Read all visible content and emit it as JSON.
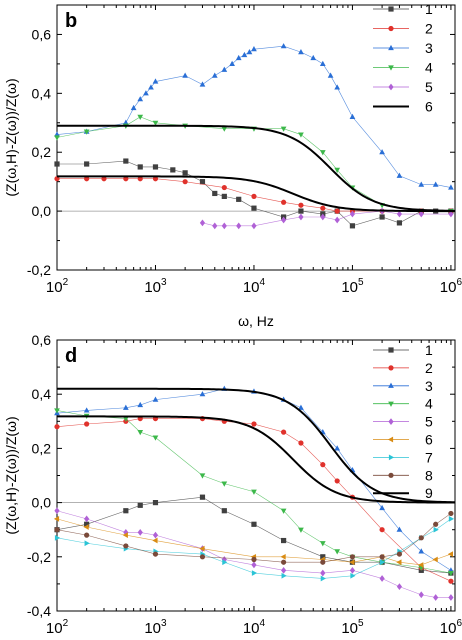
{
  "chart_data": [
    {
      "type": "scatter",
      "panel_label": "b",
      "xscale": "log",
      "xlim": [
        100,
        1100000
      ],
      "ylim": [
        -0.2,
        0.7
      ],
      "ylabel": "(Z(ω,H)-Z(ω))/Z(ω)",
      "xlabel": "ω, Hz",
      "x_ticks": [
        100,
        1000,
        10000,
        100000,
        1000000
      ],
      "x_tick_labels": [
        {
          "b": "10",
          "e": "2"
        },
        {
          "b": "10",
          "e": "3"
        },
        {
          "b": "10",
          "e": "4"
        },
        {
          "b": "10",
          "e": "5"
        },
        {
          "b": "10",
          "e": "6"
        }
      ],
      "y_ticks": [
        -0.2,
        0.0,
        0.2,
        0.4,
        0.6
      ],
      "y_tick_labels": [
        "-0,2",
        "0,0",
        "0,2",
        "0,4",
        "0,6"
      ],
      "legend_position": "top-right",
      "zero_line": true,
      "series": [
        {
          "name": "1",
          "marker": "square",
          "color": "#404040",
          "x": [
            100,
            200,
            500,
            700,
            1000,
            1500,
            2000,
            3000,
            4000,
            5000,
            7000,
            10000,
            20000,
            30000,
            50000,
            70000,
            100000,
            200000,
            300000,
            500000,
            700000,
            1000000
          ],
          "y": [
            0.16,
            0.16,
            0.17,
            0.15,
            0.15,
            0.14,
            0.13,
            0.1,
            0.06,
            0.05,
            0.04,
            0.01,
            -0.02,
            0.0,
            -0.01,
            0.0,
            -0.05,
            -0.02,
            -0.04,
            0.0,
            0.0,
            0.0
          ]
        },
        {
          "name": "2",
          "marker": "circle",
          "color": "#e0322c",
          "x": [
            100,
            200,
            300,
            500,
            700,
            1000,
            2000,
            5000,
            10000,
            20000,
            30000,
            50000,
            70000,
            100000,
            200000,
            500000,
            1000000
          ],
          "y": [
            0.11,
            0.11,
            0.11,
            0.11,
            0.11,
            0.11,
            0.1,
            0.08,
            0.05,
            0.03,
            0.02,
            0.01,
            0.0,
            0.0,
            0.0,
            0.0,
            0.0
          ]
        },
        {
          "name": "3",
          "marker": "triangle-up",
          "color": "#2a6fd6",
          "x": [
            100,
            200,
            500,
            600,
            700,
            800,
            900,
            1000,
            2000,
            3000,
            4000,
            5000,
            6000,
            7000,
            8000,
            9000,
            10000,
            20000,
            30000,
            40000,
            50000,
            60000,
            70000,
            100000,
            200000,
            300000,
            500000,
            700000,
            1000000
          ],
          "y": [
            0.26,
            0.27,
            0.3,
            0.35,
            0.38,
            0.4,
            0.42,
            0.44,
            0.46,
            0.43,
            0.46,
            0.48,
            0.5,
            0.52,
            0.53,
            0.54,
            0.55,
            0.56,
            0.54,
            0.52,
            0.5,
            0.46,
            0.42,
            0.32,
            0.2,
            0.12,
            0.09,
            0.09,
            0.08
          ]
        },
        {
          "name": "4",
          "marker": "triangle-down",
          "color": "#3cb84a",
          "x": [
            100,
            200,
            500,
            700,
            1000,
            2000,
            5000,
            10000,
            20000,
            30000,
            50000,
            70000,
            100000,
            200000,
            500000,
            1000000
          ],
          "y": [
            0.25,
            0.27,
            0.29,
            0.32,
            0.3,
            0.29,
            0.28,
            0.28,
            0.28,
            0.26,
            0.2,
            0.14,
            0.08,
            0.02,
            0.0,
            0.0
          ]
        },
        {
          "name": "5",
          "marker": "diamond",
          "color": "#b061d6",
          "x": [
            3000,
            4000,
            5000,
            7000,
            10000,
            20000,
            30000,
            50000,
            70000,
            100000,
            200000,
            300000,
            500000,
            1000000
          ],
          "y": [
            -0.04,
            -0.05,
            -0.05,
            -0.05,
            -0.05,
            -0.03,
            -0.02,
            -0.02,
            -0.03,
            -0.01,
            0.0,
            -0.01,
            -0.01,
            -0.01
          ]
        }
      ],
      "fits": [
        {
          "name": "6",
          "plateau": 0.29,
          "f0": 60000
        },
        {
          "plateau": 0.118,
          "f0": 25000
        }
      ]
    },
    {
      "type": "scatter",
      "panel_label": "d",
      "xscale": "log",
      "xlim": [
        100,
        1100000
      ],
      "ylim": [
        -0.4,
        0.6
      ],
      "ylabel": "(Z(ω,H)-Z(ω))/Z(ω)",
      "xlabel": "",
      "x_ticks": [
        100,
        1000,
        10000,
        100000,
        1000000
      ],
      "x_tick_labels": [
        {
          "b": "10",
          "e": "2"
        },
        {
          "b": "10",
          "e": "3"
        },
        {
          "b": "10",
          "e": "4"
        },
        {
          "b": "10",
          "e": "5"
        },
        {
          "b": "10",
          "e": "6"
        }
      ],
      "y_ticks": [
        -0.4,
        -0.2,
        0.0,
        0.2,
        0.4,
        0.6
      ],
      "y_tick_labels": [
        "-0,4",
        "-0,2",
        "0,0",
        "0,2",
        "0,4",
        "0,6"
      ],
      "legend_position": "top-right",
      "zero_line": true,
      "series": [
        {
          "name": "1",
          "marker": "square",
          "color": "#404040",
          "x": [
            100,
            200,
            500,
            700,
            1000,
            3000,
            5000,
            10000,
            20000,
            50000,
            100000,
            200000,
            500000,
            1000000
          ],
          "y": [
            -0.1,
            -0.08,
            -0.03,
            -0.01,
            0.0,
            0.02,
            -0.03,
            -0.08,
            -0.14,
            -0.2,
            -0.22,
            -0.22,
            -0.25,
            -0.26
          ]
        },
        {
          "name": "2",
          "marker": "circle",
          "color": "#e0322c",
          "x": [
            100,
            200,
            500,
            700,
            1000,
            3000,
            5000,
            10000,
            20000,
            30000,
            50000,
            70000,
            100000,
            200000,
            500000,
            1000000
          ],
          "y": [
            0.28,
            0.29,
            0.3,
            0.31,
            0.31,
            0.31,
            0.3,
            0.29,
            0.26,
            0.22,
            0.14,
            0.08,
            0.02,
            -0.1,
            -0.24,
            -0.29
          ]
        },
        {
          "name": "3",
          "marker": "triangle-up",
          "color": "#2a6fd6",
          "x": [
            100,
            200,
            500,
            700,
            1000,
            3000,
            5000,
            10000,
            20000,
            30000,
            50000,
            70000,
            100000,
            200000,
            300000,
            500000,
            1000000
          ],
          "y": [
            0.33,
            0.34,
            0.35,
            0.36,
            0.38,
            0.4,
            0.42,
            0.41,
            0.38,
            0.35,
            0.26,
            0.2,
            0.12,
            -0.02,
            -0.1,
            -0.18,
            -0.25
          ]
        },
        {
          "name": "4",
          "marker": "triangle-down",
          "color": "#3cb84a",
          "x": [
            100,
            200,
            500,
            700,
            1000,
            3000,
            5000,
            10000,
            20000,
            30000,
            50000,
            70000,
            100000,
            200000,
            500000,
            1000000
          ],
          "y": [
            0.34,
            0.32,
            0.31,
            0.26,
            0.24,
            0.1,
            0.07,
            0.04,
            -0.03,
            -0.1,
            -0.15,
            -0.18,
            -0.2,
            -0.22,
            -0.24,
            -0.26
          ]
        },
        {
          "name": "5",
          "marker": "diamond",
          "color": "#b061d6",
          "x": [
            100,
            200,
            500,
            700,
            1000,
            3000,
            5000,
            10000,
            20000,
            50000,
            100000,
            200000,
            300000,
            500000,
            700000,
            1000000
          ],
          "y": [
            -0.03,
            -0.06,
            -0.11,
            -0.11,
            -0.12,
            -0.17,
            -0.21,
            -0.23,
            -0.25,
            -0.26,
            -0.25,
            -0.28,
            -0.31,
            -0.34,
            -0.35,
            -0.35
          ]
        },
        {
          "name": "6",
          "marker": "triangle-left",
          "color": "#d98c14",
          "x": [
            100,
            200,
            500,
            1000,
            3000,
            10000,
            20000,
            50000,
            100000,
            200000,
            300000,
            500000,
            700000,
            1000000
          ],
          "y": [
            -0.06,
            -0.09,
            -0.12,
            -0.14,
            -0.17,
            -0.2,
            -0.2,
            -0.21,
            -0.22,
            -0.2,
            -0.22,
            -0.23,
            -0.21,
            -0.19
          ]
        },
        {
          "name": "7",
          "marker": "triangle-right",
          "color": "#2bc4d6",
          "x": [
            100,
            200,
            500,
            1000,
            3000,
            5000,
            10000,
            20000,
            50000,
            100000,
            200000,
            300000,
            500000,
            700000,
            1000000
          ],
          "y": [
            -0.13,
            -0.15,
            -0.17,
            -0.18,
            -0.19,
            -0.22,
            -0.26,
            -0.27,
            -0.28,
            -0.27,
            -0.22,
            -0.18,
            -0.13,
            -0.1,
            -0.06
          ]
        },
        {
          "name": "8",
          "marker": "circle",
          "color": "#7a4a3a",
          "x": [
            100,
            200,
            500,
            1000,
            3000,
            10000,
            20000,
            50000,
            100000,
            200000,
            300000,
            500000,
            700000,
            1000000
          ],
          "y": [
            -0.1,
            -0.12,
            -0.16,
            -0.19,
            -0.2,
            -0.21,
            -0.22,
            -0.22,
            -0.2,
            -0.2,
            -0.19,
            -0.13,
            -0.08,
            -0.04
          ]
        }
      ],
      "fits": [
        {
          "name": "9",
          "plateau": 0.42,
          "f0": 60000
        },
        {
          "plateau": 0.318,
          "f0": 25000
        }
      ]
    }
  ]
}
